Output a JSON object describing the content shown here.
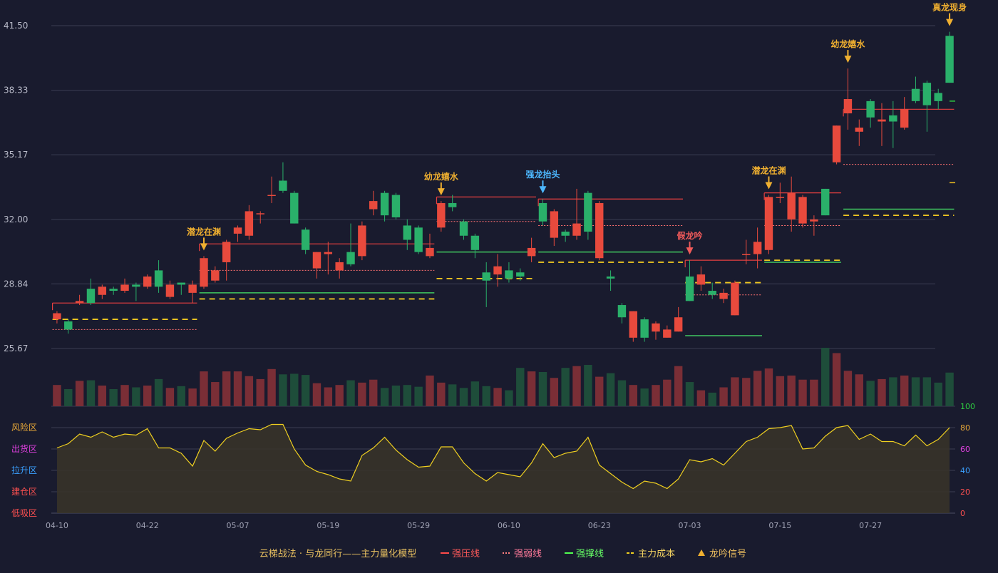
{
  "chart_data": {
    "type": "candlestick",
    "price_axis": {
      "ticks": [
        "41.50",
        "38.33",
        "35.17",
        "32.00",
        "28.84",
        "25.67"
      ],
      "tick_values": [
        41.5,
        38.33,
        35.17,
        32.0,
        28.84,
        25.67
      ],
      "ylim": [
        25.67,
        41.5
      ]
    },
    "date_ticks": [
      {
        "i": 0,
        "label": "04-10"
      },
      {
        "i": 8,
        "label": "04-22"
      },
      {
        "i": 16,
        "label": "05-07"
      },
      {
        "i": 24,
        "label": "05-19"
      },
      {
        "i": 32,
        "label": "05-29"
      },
      {
        "i": 40,
        "label": "06-10"
      },
      {
        "i": 48,
        "label": "06-23"
      },
      {
        "i": 56,
        "label": "07-03"
      },
      {
        "i": 64,
        "label": "07-15"
      },
      {
        "i": 72,
        "label": "07-27"
      }
    ],
    "candles": [
      [
        27.1,
        27.4,
        27.5,
        26.9
      ],
      [
        27.0,
        26.6,
        27.1,
        26.4
      ],
      [
        27.9,
        28.0,
        28.3,
        27.8
      ],
      [
        28.6,
        27.9,
        29.1,
        27.8
      ],
      [
        28.3,
        28.7,
        28.8,
        28.1
      ],
      [
        28.6,
        28.5,
        28.7,
        28.3
      ],
      [
        28.5,
        28.8,
        29.1,
        28.4
      ],
      [
        28.8,
        28.7,
        28.9,
        28.0
      ],
      [
        28.7,
        29.2,
        29.3,
        28.6
      ],
      [
        29.5,
        28.7,
        30.0,
        28.4
      ],
      [
        28.2,
        28.8,
        29.0,
        28.1
      ],
      [
        28.9,
        28.8,
        28.9,
        28.3
      ],
      [
        28.4,
        28.8,
        29.0,
        27.9
      ],
      [
        28.7,
        30.1,
        30.2,
        28.6
      ],
      [
        29.0,
        29.5,
        29.7,
        28.9
      ],
      [
        29.9,
        30.9,
        31.0,
        29.0
      ],
      [
        31.3,
        31.6,
        31.7,
        30.9
      ],
      [
        31.2,
        32.4,
        32.7,
        31.0
      ],
      [
        32.3,
        32.3,
        32.4,
        31.8
      ],
      [
        33.2,
        33.2,
        34.1,
        32.8
      ],
      [
        33.9,
        33.4,
        34.8,
        33.3
      ],
      [
        33.3,
        31.8,
        33.4,
        31.8
      ],
      [
        31.5,
        30.5,
        31.6,
        30.3
      ],
      [
        29.6,
        30.4,
        30.4,
        29.1
      ],
      [
        30.3,
        30.4,
        30.9,
        29.3
      ],
      [
        29.5,
        29.9,
        30.1,
        29.1
      ],
      [
        30.4,
        29.8,
        31.8,
        29.7
      ],
      [
        30.2,
        31.7,
        31.9,
        30.0
      ],
      [
        32.5,
        32.9,
        33.4,
        32.2
      ],
      [
        33.3,
        32.2,
        33.4,
        31.9
      ],
      [
        33.2,
        32.1,
        33.3,
        32.0
      ],
      [
        31.7,
        31.0,
        32.0,
        30.5
      ],
      [
        31.6,
        30.4,
        31.7,
        30.3
      ],
      [
        30.2,
        30.6,
        31.3,
        30.1
      ],
      [
        31.6,
        32.8,
        32.9,
        31.4
      ],
      [
        32.8,
        32.6,
        33.2,
        32.4
      ],
      [
        31.9,
        31.2,
        32.0,
        31.0
      ],
      [
        31.2,
        30.5,
        31.3,
        30.1
      ],
      [
        29.4,
        29.0,
        29.9,
        27.7
      ],
      [
        29.3,
        29.7,
        30.3,
        28.7
      ],
      [
        29.5,
        29.1,
        29.9,
        28.9
      ],
      [
        29.4,
        29.2,
        29.6,
        29.0
      ],
      [
        30.2,
        30.6,
        31.1,
        29.9
      ],
      [
        32.8,
        31.9,
        33.0,
        31.7
      ],
      [
        31.1,
        32.4,
        32.5,
        30.7
      ],
      [
        31.4,
        31.2,
        31.5,
        30.9
      ],
      [
        31.2,
        31.8,
        33.5,
        31.0
      ],
      [
        33.3,
        31.4,
        33.4,
        31.0
      ],
      [
        30.1,
        32.8,
        32.9,
        30.0
      ],
      [
        29.2,
        29.1,
        29.5,
        28.5
      ],
      [
        27.8,
        27.2,
        27.9,
        26.9
      ],
      [
        26.2,
        27.5,
        27.5,
        26.0
      ],
      [
        27.1,
        26.2,
        27.2,
        26.0
      ],
      [
        26.5,
        26.9,
        27.0,
        26.1
      ],
      [
        26.2,
        26.6,
        26.8,
        26.2
      ],
      [
        26.5,
        27.2,
        27.7,
        26.5
      ],
      [
        29.2,
        28.0,
        30.0,
        28.0
      ],
      [
        28.8,
        29.3,
        29.7,
        28.5
      ],
      [
        28.5,
        28.3,
        28.9,
        28.1
      ],
      [
        28.1,
        28.4,
        28.6,
        27.9
      ],
      [
        27.3,
        28.9,
        29.0,
        27.3
      ],
      [
        30.3,
        30.3,
        31.0,
        29.8
      ],
      [
        30.3,
        30.9,
        31.6,
        29.6
      ],
      [
        30.5,
        33.1,
        33.2,
        30.3
      ],
      [
        33.1,
        33.1,
        33.8,
        32.8
      ],
      [
        32.0,
        33.3,
        34.1,
        31.4
      ],
      [
        31.8,
        33.1,
        33.2,
        31.6
      ],
      [
        31.9,
        32.0,
        32.2,
        31.2
      ],
      [
        33.5,
        32.2,
        33.5,
        32.2
      ],
      [
        34.8,
        36.6,
        36.6,
        34.7
      ],
      [
        37.2,
        37.9,
        39.4,
        36.4
      ],
      [
        36.3,
        36.5,
        36.9,
        35.6
      ],
      [
        37.8,
        37.0,
        37.9,
        36.5
      ],
      [
        36.8,
        36.9,
        37.7,
        35.6
      ],
      [
        37.1,
        36.8,
        37.8,
        35.5
      ],
      [
        36.5,
        37.4,
        38.0,
        36.4
      ],
      [
        38.4,
        37.8,
        39.0,
        37.7
      ],
      [
        38.7,
        37.6,
        38.8,
        36.3
      ],
      [
        38.2,
        37.8,
        38.4,
        37.4
      ],
      [
        41.0,
        38.7,
        41.2,
        38.7
      ]
    ],
    "volume": [
      36,
      29,
      43,
      44,
      35,
      29,
      36,
      32,
      35,
      46,
      31,
      34,
      30,
      59,
      41,
      59,
      59,
      51,
      46,
      63,
      54,
      55,
      53,
      39,
      32,
      36,
      44,
      40,
      45,
      31,
      35,
      36,
      33,
      52,
      40,
      37,
      31,
      42,
      34,
      31,
      27,
      65,
      59,
      58,
      48,
      65,
      68,
      70,
      50,
      56,
      44,
      36,
      30,
      36,
      45,
      68,
      41,
      27,
      23,
      32,
      49,
      48,
      60,
      64,
      51,
      52,
      45,
      45,
      99,
      90,
      60,
      54,
      43,
      46,
      49,
      52,
      49,
      49,
      40,
      57
    ],
    "indicator": {
      "zones": [
        {
          "label": "风险区",
          "color": "#e8a838"
        },
        {
          "label": "出货区",
          "color": "#e040e0"
        },
        {
          "label": "拉升区",
          "color": "#3aa0ff"
        },
        {
          "label": "建仓区",
          "color": "#ff5050"
        },
        {
          "label": "低吸区",
          "color": "#ff5050"
        }
      ],
      "right_ticks": [
        {
          "v": 100,
          "color": "#2ecc40"
        },
        {
          "v": 80,
          "color": "#e8a838"
        },
        {
          "v": 60,
          "color": "#e040e0"
        },
        {
          "v": 40,
          "color": "#3aa0ff"
        },
        {
          "v": 20,
          "color": "#ff5050"
        },
        {
          "v": 0,
          "color": "#ff5050"
        }
      ],
      "values": [
        61,
        65,
        74,
        71,
        76,
        71,
        74,
        73,
        79,
        61,
        61,
        56,
        44,
        68,
        58,
        70,
        75,
        79,
        78,
        83,
        83,
        60,
        45,
        39,
        36,
        32,
        30,
        54,
        61,
        71,
        59,
        50,
        43,
        44,
        62,
        62,
        47,
        37,
        30,
        38,
        36,
        34,
        47,
        65,
        52,
        56,
        58,
        71,
        45,
        37,
        29,
        23,
        30,
        28,
        23,
        32,
        50,
        48,
        51,
        45,
        56,
        67,
        71,
        79,
        80,
        82,
        60,
        61,
        72,
        80,
        82,
        69,
        74,
        67,
        67,
        63,
        73,
        63,
        69,
        80
      ]
    },
    "signals": [
      {
        "i": 13,
        "label": "潜龙在渊",
        "color": "#f0b030",
        "dir": "down"
      },
      {
        "i": 34,
        "label": "幼龙嬉水",
        "color": "#f0b030",
        "dir": "down"
      },
      {
        "i": 43,
        "label": "强龙抬头",
        "color": "#4db8ff",
        "dir": "down"
      },
      {
        "i": 56,
        "label": "假龙吟",
        "color": "#f05a5a",
        "dir": "down"
      },
      {
        "i": 63,
        "label": "潜龙在渊",
        "color": "#f0b030",
        "dir": "down"
      },
      {
        "i": 70,
        "label": "幼龙嬉水",
        "color": "#f0b030",
        "dir": "down"
      },
      {
        "i": 79,
        "label": "真龙现身",
        "color": "#f0b030",
        "dir": "down"
      }
    ],
    "levels": [
      {
        "type": "resist",
        "i0": 0,
        "i1": 12,
        "v": 27.9
      },
      {
        "type": "weak",
        "i0": 0,
        "i1": 12,
        "v": 26.6
      },
      {
        "type": "cost",
        "i0": 0,
        "i1": 12,
        "v": 27.1
      },
      {
        "type": "resist",
        "i0": 13,
        "i1": 33,
        "v": 30.8
      },
      {
        "type": "weak",
        "i0": 13,
        "i1": 33,
        "v": 29.5
      },
      {
        "type": "support",
        "i0": 13,
        "i1": 33,
        "v": 28.4
      },
      {
        "type": "cost",
        "i0": 13,
        "i1": 33,
        "v": 28.1
      },
      {
        "type": "resist",
        "i0": 34,
        "i1": 42,
        "v": 33.1
      },
      {
        "type": "weak",
        "i0": 34,
        "i1": 42,
        "v": 31.9
      },
      {
        "type": "support",
        "i0": 34,
        "i1": 42,
        "v": 30.4
      },
      {
        "type": "cost",
        "i0": 34,
        "i1": 42,
        "v": 29.1
      },
      {
        "type": "resist",
        "i0": 43,
        "i1": 55,
        "v": 33.0
      },
      {
        "type": "weak",
        "i0": 43,
        "i1": 55,
        "v": 31.7
      },
      {
        "type": "support",
        "i0": 43,
        "i1": 55,
        "v": 30.4
      },
      {
        "type": "cost",
        "i0": 43,
        "i1": 55,
        "v": 29.9
      },
      {
        "type": "resist",
        "i0": 56,
        "i1": 62,
        "v": 30.0
      },
      {
        "type": "weak",
        "i0": 56,
        "i1": 62,
        "v": 28.3
      },
      {
        "type": "support",
        "i0": 56,
        "i1": 62,
        "v": 26.3
      },
      {
        "type": "cost",
        "i0": 56,
        "i1": 62,
        "v": 28.9
      },
      {
        "type": "resist",
        "i0": 63,
        "i1": 69,
        "v": 33.3
      },
      {
        "type": "weak",
        "i0": 63,
        "i1": 69,
        "v": 31.7
      },
      {
        "type": "support",
        "i0": 63,
        "i1": 69,
        "v": 29.9
      },
      {
        "type": "cost",
        "i0": 63,
        "i1": 69,
        "v": 30.0
      },
      {
        "type": "resist",
        "i0": 70,
        "i1": 79,
        "v": 37.4
      },
      {
        "type": "weak",
        "i0": 70,
        "i1": 79,
        "v": 34.7
      },
      {
        "type": "support",
        "i0": 70,
        "i1": 79,
        "v": 32.5
      },
      {
        "type": "cost",
        "i0": 70,
        "i1": 79,
        "v": 32.2
      }
    ],
    "right_marks": [
      {
        "v": 37.8,
        "color": "#2ecc40"
      },
      {
        "v": 33.8,
        "color": "#f0c020"
      }
    ],
    "legend": {
      "title": "云梯战法 · 与龙同行——主力量化模型",
      "items": [
        {
          "label": "强压线",
          "style": "solid",
          "color": "#ff4a4a",
          "text_color": "#ff5a5a"
        },
        {
          "label": "强弱线",
          "style": "dotted",
          "color": "#ff8080",
          "text_color": "#ff7a9a"
        },
        {
          "label": "强撑线",
          "style": "solid",
          "color": "#50ff50",
          "text_color": "#66ff66"
        },
        {
          "label": "主力成本",
          "style": "dashed",
          "color": "#f0d020",
          "text_color": "#f0d060"
        },
        {
          "label": "龙吟信号",
          "style": "triangle",
          "color": "#f0b030",
          "text_color": "#f0c060"
        }
      ]
    },
    "colors": {
      "up": "#e84a3d",
      "down": "#2ab06a",
      "vol_up": "#7a2e36",
      "vol_down": "#1e4d3a",
      "line": "#f0d020",
      "bg": "#191b2e"
    }
  }
}
